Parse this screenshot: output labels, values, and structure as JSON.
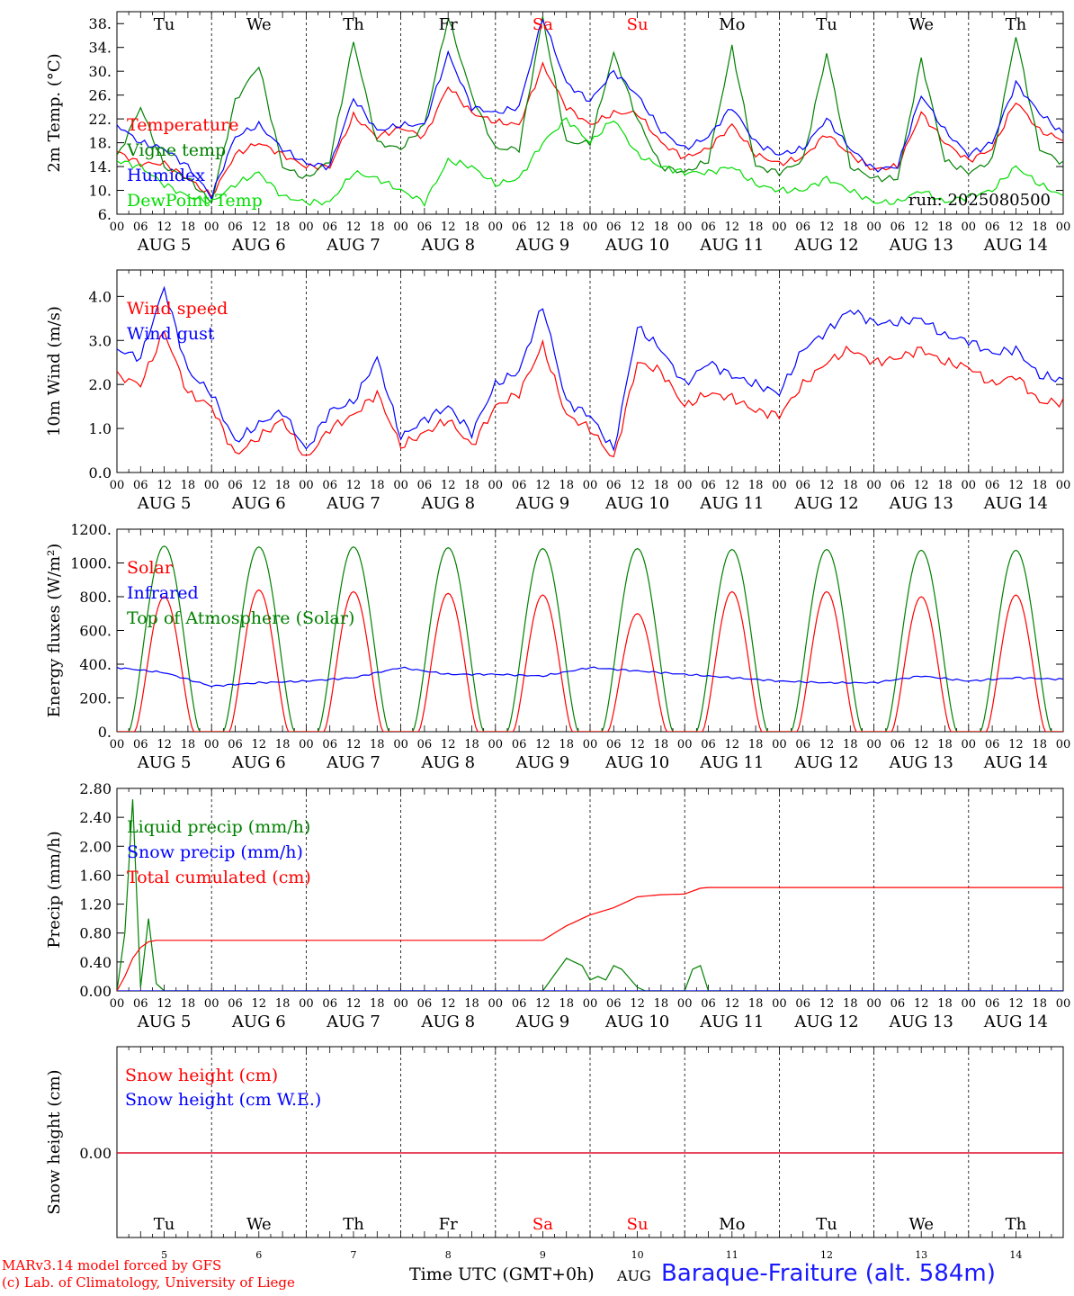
{
  "days": [
    {
      "label": "Tu",
      "date": "AUG 5",
      "num": "5",
      "weekend": false
    },
    {
      "label": "We",
      "date": "AUG 6",
      "num": "6",
      "weekend": false
    },
    {
      "label": "Th",
      "date": "AUG 7",
      "num": "7",
      "weekend": false
    },
    {
      "label": "Fr",
      "date": "AUG 8",
      "num": "8",
      "weekend": false
    },
    {
      "label": "Sa",
      "date": "AUG 9",
      "num": "9",
      "weekend": true
    },
    {
      "label": "Su",
      "date": "AUG 10",
      "num": "10",
      "weekend": true
    },
    {
      "label": "Mo",
      "date": "AUG 11",
      "num": "11",
      "weekend": false
    },
    {
      "label": "Tu",
      "date": "AUG 12",
      "num": "12",
      "weekend": false
    },
    {
      "label": "We",
      "date": "AUG 13",
      "num": "13",
      "weekend": false
    },
    {
      "label": "Th",
      "date": "AUG 14",
      "num": "14",
      "weekend": false
    }
  ],
  "hour_ticks": [
    "00",
    "06",
    "12",
    "18"
  ],
  "final_tick": "00",
  "run_label": "run: 2025080500",
  "footer": {
    "model": "MARv3.14 model forced by GFS",
    "copyright": "(c) Lab. of Climatology, University of Liege",
    "time_label": "Time UTC (GMT+0h)",
    "month": "AUG",
    "station": "Baraque-Fraiture (alt. 584m)"
  },
  "colors": {
    "red": "#ff0000",
    "green": "#008000",
    "blue": "#0000ff",
    "lightgreen": "#00dd00",
    "weekend": "#ff0000"
  },
  "chart_data": [
    {
      "type": "line",
      "ylabel": "2m Temp. (°C)",
      "ylim": [
        6,
        40
      ],
      "yticks": [
        6,
        10,
        14,
        18,
        22,
        26,
        30,
        34,
        38
      ],
      "ytick_labels": [
        "6.",
        "10.",
        "14.",
        "18.",
        "22.",
        "26.",
        "30.",
        "34.",
        "38."
      ],
      "x_hours": [
        0,
        6,
        12,
        18,
        24,
        30,
        36,
        42,
        48,
        54,
        60,
        66,
        72,
        78,
        84,
        90,
        96,
        102,
        108,
        114,
        120,
        126,
        132,
        138,
        144,
        150,
        156,
        162,
        168,
        174,
        180,
        186,
        192,
        198,
        204,
        210,
        216,
        222,
        228,
        234,
        240
      ],
      "series": [
        {
          "name": "Temperature",
          "color": "red",
          "values": [
            16.5,
            14.5,
            14.5,
            12,
            9,
            16,
            18,
            16,
            14,
            14,
            22.5,
            19,
            20.5,
            19,
            27.5,
            23,
            21.5,
            21,
            31,
            24,
            21,
            23,
            23,
            18,
            15.5,
            17,
            21,
            16,
            14.5,
            15.5,
            19.5,
            16,
            13.5,
            14,
            23,
            18,
            15,
            17,
            25,
            20,
            18.5
          ]
        },
        {
          "name": "Vigne temp",
          "color": "green",
          "values": [
            15.5,
            24,
            14,
            12,
            8,
            25,
            31,
            14,
            12,
            15,
            35,
            18,
            17,
            21,
            39,
            26,
            17,
            17,
            39,
            18,
            18,
            33,
            22,
            14,
            13,
            15,
            34,
            14,
            13,
            15,
            33,
            14,
            12,
            12,
            32,
            15,
            13,
            15,
            36,
            17,
            14.5
          ]
        },
        {
          "name": "Humidex",
          "color": "blue",
          "values": [
            21,
            18,
            17,
            14,
            9,
            19,
            21,
            17,
            14.5,
            14,
            25.5,
            20,
            21,
            21,
            33,
            24,
            23,
            24,
            39,
            28,
            25,
            30,
            26,
            20,
            17,
            19,
            24,
            18,
            16,
            17,
            22,
            17,
            13.5,
            14,
            26,
            20,
            16,
            18,
            28,
            23,
            19.5
          ]
        },
        {
          "name": "DewPoint Temp",
          "color": "lightgreen",
          "values": [
            15,
            14,
            11,
            9,
            8,
            11,
            13,
            9,
            8,
            8,
            13,
            12,
            10,
            8,
            15,
            14,
            11,
            12,
            18,
            22,
            18,
            22,
            16,
            14,
            13,
            13,
            14,
            11,
            10,
            10,
            12,
            10,
            8,
            8,
            10,
            8,
            9,
            10,
            14,
            11,
            9
          ]
        }
      ]
    },
    {
      "type": "line",
      "ylabel": "10m Wind (m/s)",
      "ylim": [
        0,
        4.6
      ],
      "yticks": [
        0,
        1,
        2,
        3,
        4
      ],
      "ytick_labels": [
        "0.0",
        "1.0",
        "2.0",
        "3.0",
        "4.0"
      ],
      "x_hours": [
        0,
        6,
        12,
        18,
        24,
        30,
        36,
        42,
        48,
        54,
        60,
        66,
        72,
        78,
        84,
        90,
        96,
        102,
        108,
        114,
        120,
        126,
        132,
        138,
        144,
        150,
        156,
        162,
        168,
        174,
        180,
        186,
        192,
        198,
        204,
        210,
        216,
        222,
        228,
        234,
        240
      ],
      "series": [
        {
          "name": "Wind speed",
          "color": "red",
          "values": [
            2.2,
            2.0,
            3.2,
            1.8,
            1.5,
            0.4,
            0.8,
            1.2,
            0.3,
            1.0,
            1.3,
            1.8,
            0.6,
            0.9,
            1.2,
            0.6,
            1.5,
            1.8,
            2.9,
            1.3,
            1.0,
            0.3,
            2.5,
            2.3,
            1.5,
            1.8,
            1.7,
            1.4,
            1.3,
            2.0,
            2.5,
            2.8,
            2.5,
            2.6,
            2.8,
            2.5,
            2.4,
            2.0,
            2.2,
            1.6,
            1.6
          ]
        },
        {
          "name": "Wind gust",
          "color": "blue",
          "values": [
            2.8,
            2.6,
            4.2,
            2.3,
            1.8,
            0.7,
            1.1,
            1.4,
            0.5,
            1.4,
            1.6,
            2.6,
            0.8,
            1.2,
            1.5,
            0.9,
            2.0,
            2.3,
            3.8,
            1.6,
            1.3,
            0.5,
            3.3,
            2.8,
            2.0,
            2.5,
            2.2,
            2.0,
            1.8,
            2.8,
            3.2,
            3.7,
            3.4,
            3.4,
            3.5,
            3.1,
            3.0,
            2.7,
            2.8,
            2.2,
            2.1
          ]
        }
      ]
    },
    {
      "type": "line",
      "ylabel": "Energy fluxes (W/m²)",
      "ylim": [
        0,
        1200
      ],
      "yticks": [
        0,
        200,
        400,
        600,
        800,
        1000,
        1200
      ],
      "ytick_labels": [
        "0.",
        "200.",
        "400.",
        "600.",
        "800.",
        "1000.",
        "1200."
      ],
      "diurnal_peaks": {
        "solar": [
          800,
          840,
          830,
          820,
          810,
          700,
          830,
          830,
          800,
          810
        ],
        "top_of_atmosphere": [
          1100,
          1095,
          1095,
          1090,
          1085,
          1085,
          1080,
          1080,
          1075,
          1075
        ]
      },
      "series": [
        {
          "name": "Solar",
          "color": "red"
        },
        {
          "name": "Infrared",
          "color": "blue",
          "x_hours": [
            0,
            12,
            24,
            36,
            48,
            60,
            72,
            84,
            96,
            108,
            120,
            132,
            144,
            156,
            168,
            180,
            192,
            204,
            216,
            228,
            240
          ],
          "values": [
            380,
            350,
            270,
            290,
            300,
            320,
            380,
            340,
            340,
            330,
            380,
            360,
            340,
            320,
            300,
            290,
            290,
            330,
            300,
            320,
            310
          ]
        },
        {
          "name": "Top of Atmosphere (Solar)",
          "color": "green"
        }
      ]
    },
    {
      "type": "line",
      "ylabel": "Precip (mm/h)",
      "ylim": [
        0,
        2.8
      ],
      "yticks": [
        0,
        0.4,
        0.8,
        1.2,
        1.6,
        2.0,
        2.4,
        2.8
      ],
      "ytick_labels": [
        "0.00",
        "0.40",
        "0.80",
        "1.20",
        "1.60",
        "2.00",
        "2.40",
        "2.80"
      ],
      "series": [
        {
          "name": "Liquid precip (mm/h)",
          "color": "green",
          "x_hours": [
            0,
            2,
            4,
            6,
            8,
            10,
            12,
            24,
            108,
            112,
            114,
            118,
            120,
            122,
            124,
            126,
            128,
            132,
            134,
            144,
            146,
            148,
            150,
            240
          ],
          "values": [
            0,
            0.8,
            2.65,
            0.05,
            1.0,
            0.1,
            0,
            0,
            0,
            0.3,
            0.45,
            0.35,
            0.15,
            0.2,
            0.15,
            0.35,
            0.3,
            0.05,
            0,
            0,
            0.3,
            0.35,
            0,
            0
          ]
        },
        {
          "name": "Snow precip (mm/h)",
          "color": "blue",
          "x_hours": [
            0,
            240
          ],
          "values": [
            0,
            0
          ]
        },
        {
          "name": "Total cumulated (cm)",
          "color": "red",
          "x_hours": [
            0,
            2,
            4,
            6,
            8,
            10,
            12,
            108,
            114,
            120,
            126,
            132,
            138,
            144,
            146,
            148,
            150,
            240
          ],
          "values": [
            0,
            0.2,
            0.45,
            0.6,
            0.68,
            0.7,
            0.7,
            0.7,
            0.9,
            1.05,
            1.15,
            1.3,
            1.33,
            1.34,
            1.38,
            1.42,
            1.43,
            1.43
          ]
        }
      ]
    },
    {
      "type": "line",
      "ylabel": "Snow height (cm)",
      "yticks": [
        0
      ],
      "ytick_labels": [
        "0.00"
      ],
      "series": [
        {
          "name": "Snow height (cm)",
          "color": "red",
          "x_hours": [
            0,
            240
          ],
          "values": [
            0,
            0
          ]
        },
        {
          "name": "Snow height (cm W.E.)",
          "color": "blue",
          "x_hours": [
            0,
            240
          ],
          "values": [
            0,
            0
          ]
        }
      ]
    }
  ]
}
